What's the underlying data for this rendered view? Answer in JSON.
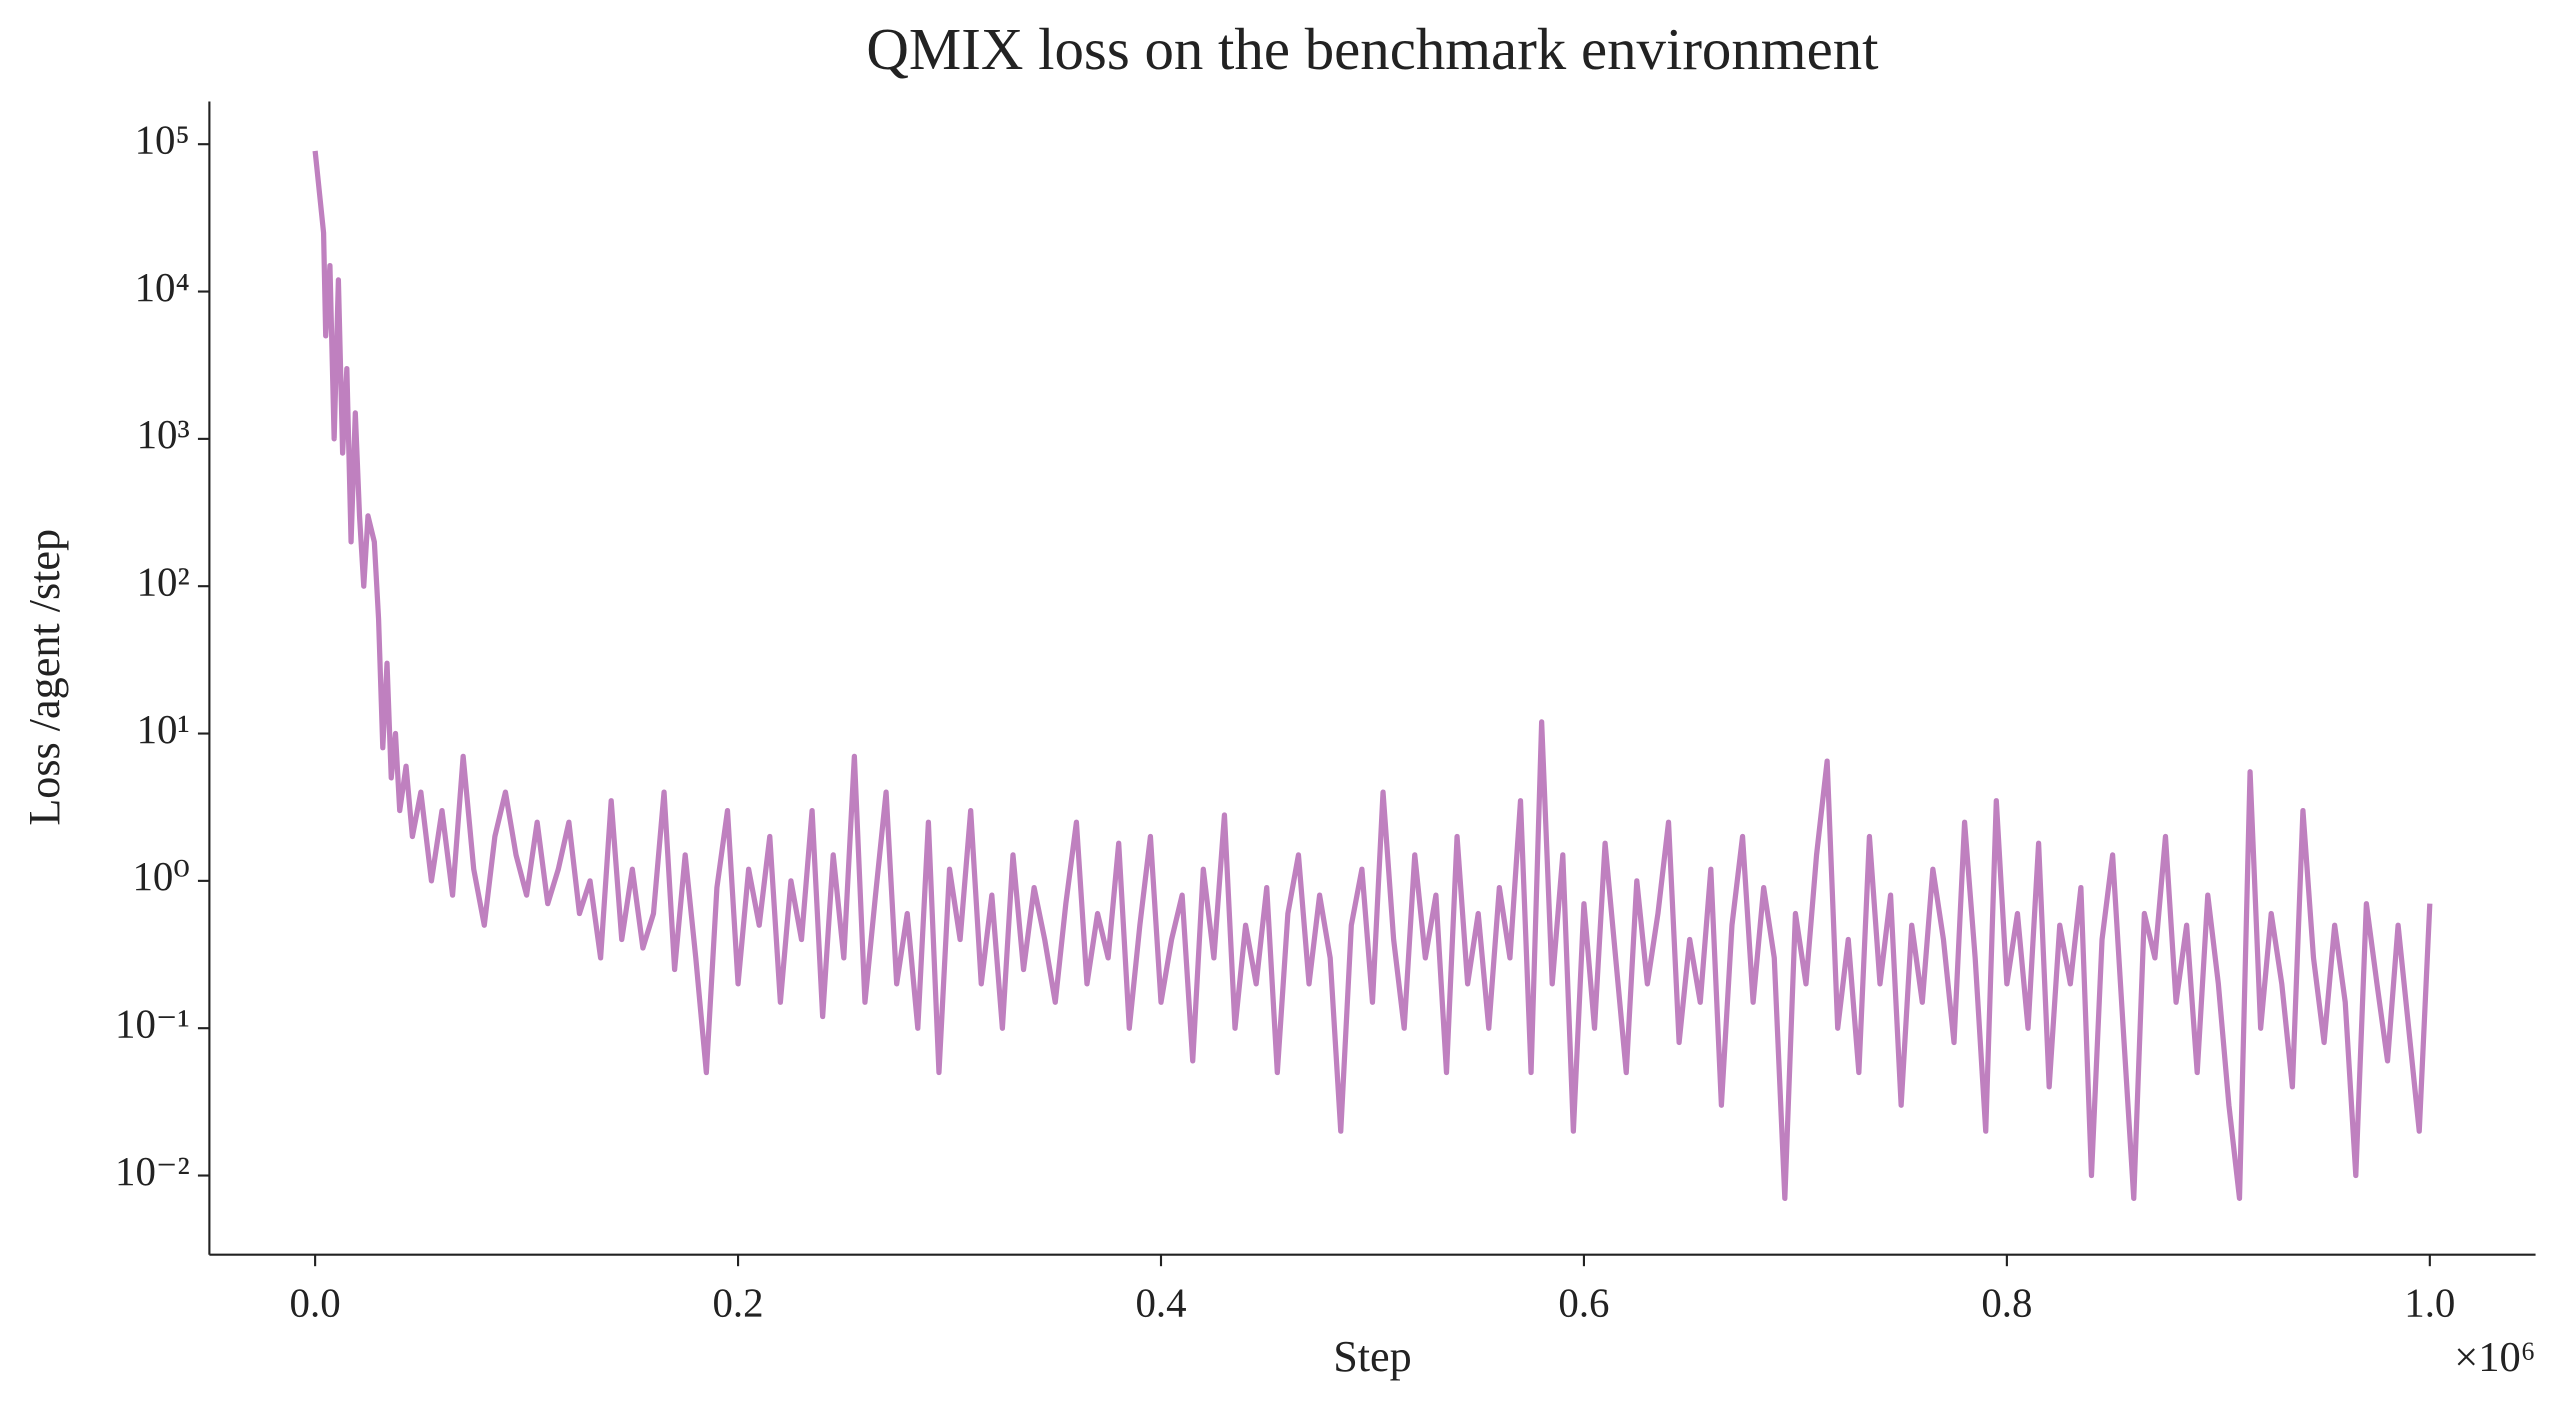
{
  "chart_data": {
    "type": "line",
    "title": "QMIX loss on the benchmark environment",
    "x_label": "Step",
    "x_offset_label": "×10⁶",
    "y_label": "Loss /agent /step",
    "log_y": true,
    "grid": false,
    "x": [
      0,
      0.004,
      0.005,
      0.007,
      0.009,
      0.011,
      0.013,
      0.015,
      0.017,
      0.019,
      0.021,
      0.023,
      0.025,
      0.028,
      0.03,
      0.032,
      0.034,
      0.036,
      0.038,
      0.04,
      0.043,
      0.046,
      0.05,
      0.055,
      0.06,
      0.065,
      0.07,
      0.075,
      0.08,
      0.085,
      0.09,
      0.095,
      0.1,
      0.105,
      0.11,
      0.115,
      0.12,
      0.125,
      0.13,
      0.135,
      0.14,
      0.145,
      0.15,
      0.155,
      0.16,
      0.165,
      0.17,
      0.175,
      0.18,
      0.185,
      0.19,
      0.195,
      0.2,
      0.205,
      0.21,
      0.215,
      0.22,
      0.225,
      0.23,
      0.235,
      0.24,
      0.245,
      0.25,
      0.255,
      0.26,
      0.265,
      0.27,
      0.275,
      0.28,
      0.285,
      0.29,
      0.295,
      0.3,
      0.305,
      0.31,
      0.315,
      0.32,
      0.325,
      0.33,
      0.335,
      0.34,
      0.345,
      0.35,
      0.355,
      0.36,
      0.365,
      0.37,
      0.375,
      0.38,
      0.385,
      0.39,
      0.395,
      0.4,
      0.405,
      0.41,
      0.415,
      0.42,
      0.425,
      0.43,
      0.435,
      0.44,
      0.445,
      0.45,
      0.455,
      0.46,
      0.465,
      0.47,
      0.475,
      0.48,
      0.485,
      0.49,
      0.495,
      0.5,
      0.505,
      0.51,
      0.515,
      0.52,
      0.525,
      0.53,
      0.535,
      0.54,
      0.545,
      0.55,
      0.555,
      0.56,
      0.565,
      0.57,
      0.575,
      0.58,
      0.585,
      0.59,
      0.595,
      0.6,
      0.605,
      0.61,
      0.615,
      0.62,
      0.625,
      0.63,
      0.635,
      0.64,
      0.645,
      0.65,
      0.655,
      0.66,
      0.665,
      0.67,
      0.675,
      0.68,
      0.685,
      0.69,
      0.695,
      0.7,
      0.705,
      0.71,
      0.715,
      0.72,
      0.725,
      0.73,
      0.735,
      0.74,
      0.745,
      0.75,
      0.755,
      0.76,
      0.765,
      0.77,
      0.775,
      0.78,
      0.785,
      0.79,
      0.795,
      0.8,
      0.805,
      0.81,
      0.815,
      0.82,
      0.825,
      0.83,
      0.835,
      0.84,
      0.845,
      0.85,
      0.855,
      0.86,
      0.865,
      0.87,
      0.875,
      0.88,
      0.885,
      0.89,
      0.895,
      0.9,
      0.905,
      0.91,
      0.915,
      0.92,
      0.925,
      0.93,
      0.935,
      0.94,
      0.945,
      0.95,
      0.955,
      0.96,
      0.965,
      0.97,
      0.975,
      0.98,
      0.985,
      0.99,
      0.995,
      1.0
    ],
    "series": [
      {
        "color": "#bf80bf",
        "values": [
          90000,
          25000,
          5000,
          15000,
          1000,
          12000,
          800,
          3000,
          200,
          1500,
          300,
          100,
          300,
          200,
          60,
          8,
          30,
          5,
          10,
          3,
          6,
          2,
          4,
          1,
          3,
          0.8,
          7,
          1.2,
          0.5,
          2,
          4,
          1.5,
          0.8,
          2.5,
          0.7,
          1.2,
          2.5,
          0.6,
          1,
          0.3,
          3.5,
          0.4,
          1.2,
          0.35,
          0.6,
          4,
          0.25,
          1.5,
          0.3,
          0.05,
          0.9,
          3,
          0.2,
          1.2,
          0.5,
          2,
          0.15,
          1,
          0.4,
          3,
          0.12,
          1.5,
          0.3,
          7,
          0.15,
          0.8,
          4,
          0.2,
          0.6,
          0.1,
          2.5,
          0.05,
          1.2,
          0.4,
          3,
          0.2,
          0.8,
          0.1,
          1.5,
          0.25,
          0.9,
          0.4,
          0.15,
          0.7,
          2.5,
          0.2,
          0.6,
          0.3,
          1.8,
          0.1,
          0.5,
          2,
          0.15,
          0.4,
          0.8,
          0.06,
          1.2,
          0.3,
          2.8,
          0.1,
          0.5,
          0.2,
          0.9,
          0.05,
          0.6,
          1.5,
          0.2,
          0.8,
          0.3,
          0.02,
          0.5,
          1.2,
          0.15,
          4,
          0.4,
          0.1,
          1.5,
          0.3,
          0.8,
          0.05,
          2,
          0.2,
          0.6,
          0.1,
          0.9,
          0.3,
          3.5,
          0.05,
          12,
          0.2,
          1.5,
          0.02,
          0.7,
          0.1,
          1.8,
          0.3,
          0.05,
          1,
          0.2,
          0.6,
          2.5,
          0.08,
          0.4,
          0.15,
          1.2,
          0.03,
          0.5,
          2,
          0.15,
          0.9,
          0.3,
          0.007,
          0.6,
          0.2,
          1.5,
          6.5,
          0.1,
          0.4,
          0.05,
          2,
          0.2,
          0.8,
          0.03,
          0.5,
          0.15,
          1.2,
          0.4,
          0.08,
          2.5,
          0.3,
          0.02,
          3.5,
          0.2,
          0.6,
          0.1,
          1.8,
          0.04,
          0.5,
          0.2,
          0.9,
          0.01,
          0.4,
          1.5,
          0.1,
          0.007,
          0.6,
          0.3,
          2,
          0.15,
          0.5,
          0.05,
          0.8,
          0.2,
          0.03,
          0.007,
          5.5,
          0.1,
          0.6,
          0.2,
          0.04,
          3,
          0.3,
          0.08,
          0.5,
          0.15,
          0.01,
          0.7,
          0.2,
          0.06,
          0.5,
          0.1,
          0.02,
          0.7
        ]
      }
    ],
    "xlim": [
      -0.05,
      1.05
    ],
    "xticks": [
      {
        "value": 0,
        "label": "0.0"
      },
      0.2,
      0.4,
      0.6,
      0.8,
      {
        "value": 1,
        "label": "1.0"
      }
    ],
    "ylim": [
      0.0029,
      195000
    ],
    "yticks": [
      {
        "value": 0.01,
        "label": "10⁻²"
      },
      {
        "value": 0.1,
        "label": "10⁻¹"
      },
      {
        "value": 1,
        "label": "10⁰"
      },
      {
        "value": 10,
        "label": "10¹"
      },
      {
        "value": 100,
        "label": "10²"
      },
      {
        "value": 1000,
        "label": "10³"
      },
      {
        "value": 10000,
        "label": "10⁴"
      },
      {
        "value": 100000,
        "label": "10⁵"
      }
    ]
  }
}
